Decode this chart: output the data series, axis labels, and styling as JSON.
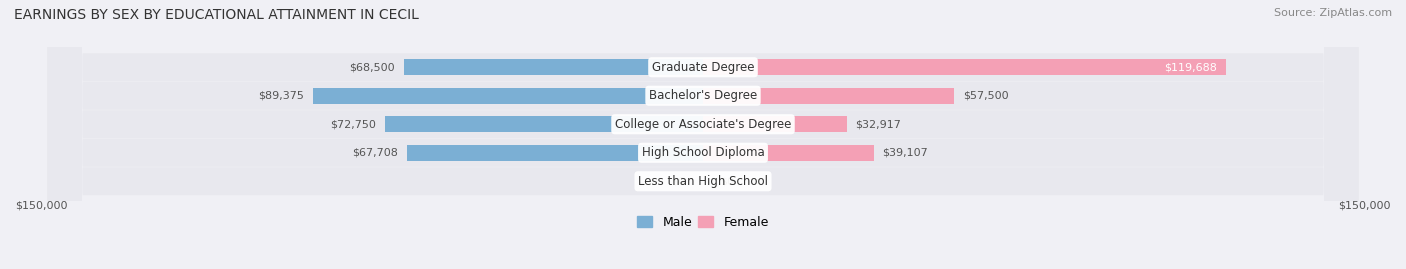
{
  "title": "EARNINGS BY SEX BY EDUCATIONAL ATTAINMENT IN CECIL",
  "source": "Source: ZipAtlas.com",
  "categories": [
    "Less than High School",
    "High School Diploma",
    "College or Associate's Degree",
    "Bachelor's Degree",
    "Graduate Degree"
  ],
  "male_values": [
    0,
    67708,
    72750,
    89375,
    68500
  ],
  "female_values": [
    0,
    39107,
    32917,
    57500,
    119688
  ],
  "male_color": "#7bafd4",
  "female_color": "#f4a0b5",
  "male_label_color": "#555555",
  "female_label_color_default": "#555555",
  "female_label_color_white": "#ffffff",
  "background_color": "#f0f0f5",
  "row_bg_color": "#e8e8ee",
  "center_label_bg": "#ffffff",
  "xlim": 150000,
  "axis_label_left": "$150,000",
  "axis_label_right": "$150,000",
  "title_fontsize": 10,
  "source_fontsize": 8,
  "bar_label_fontsize": 8,
  "category_fontsize": 8.5,
  "legend_fontsize": 9
}
